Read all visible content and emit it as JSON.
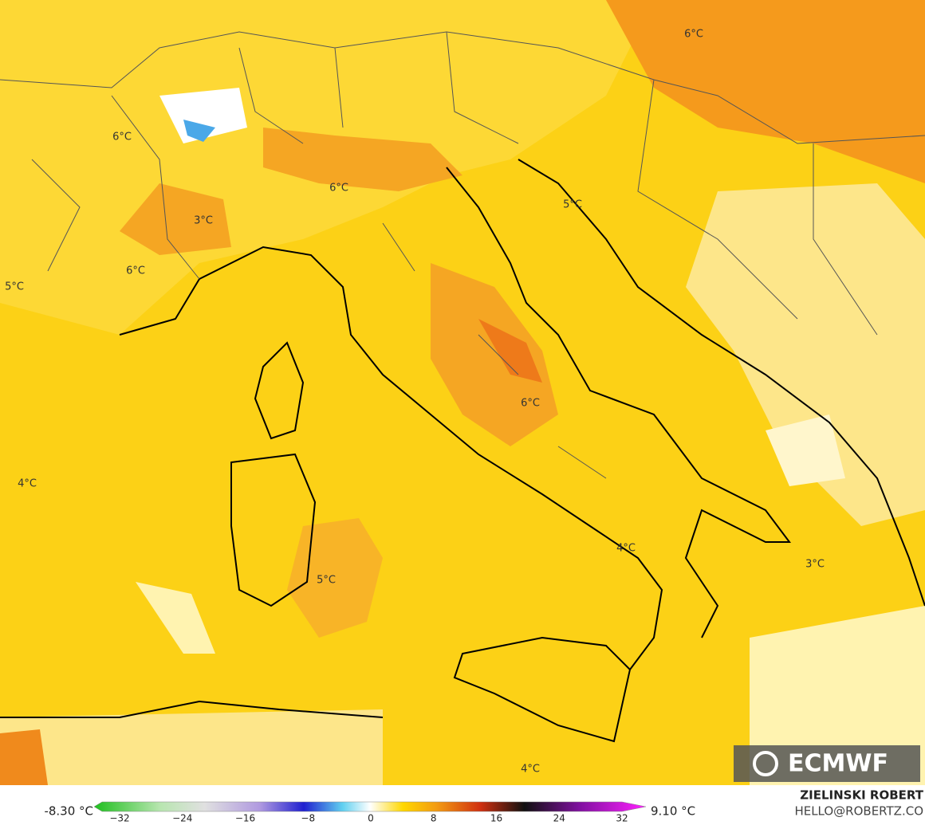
{
  "map_labels": [
    "6°C",
    "6°C",
    "6°C",
    "3°C",
    "6°C",
    "5°C",
    "5°C",
    "6°C",
    "4°C",
    "4°C",
    "5°C",
    "3°C",
    "4°C"
  ],
  "legend": {
    "min": "-8.30 °C",
    "max": "9.10 °C",
    "ticks": [
      "−32",
      "−24",
      "−16",
      "−8",
      "0",
      "8",
      "16",
      "24",
      "32"
    ]
  },
  "logo": "ECMWF",
  "author": "ZIELINSKI ROBERT",
  "contact": "HELLO@ROBERTZ.CO"
}
